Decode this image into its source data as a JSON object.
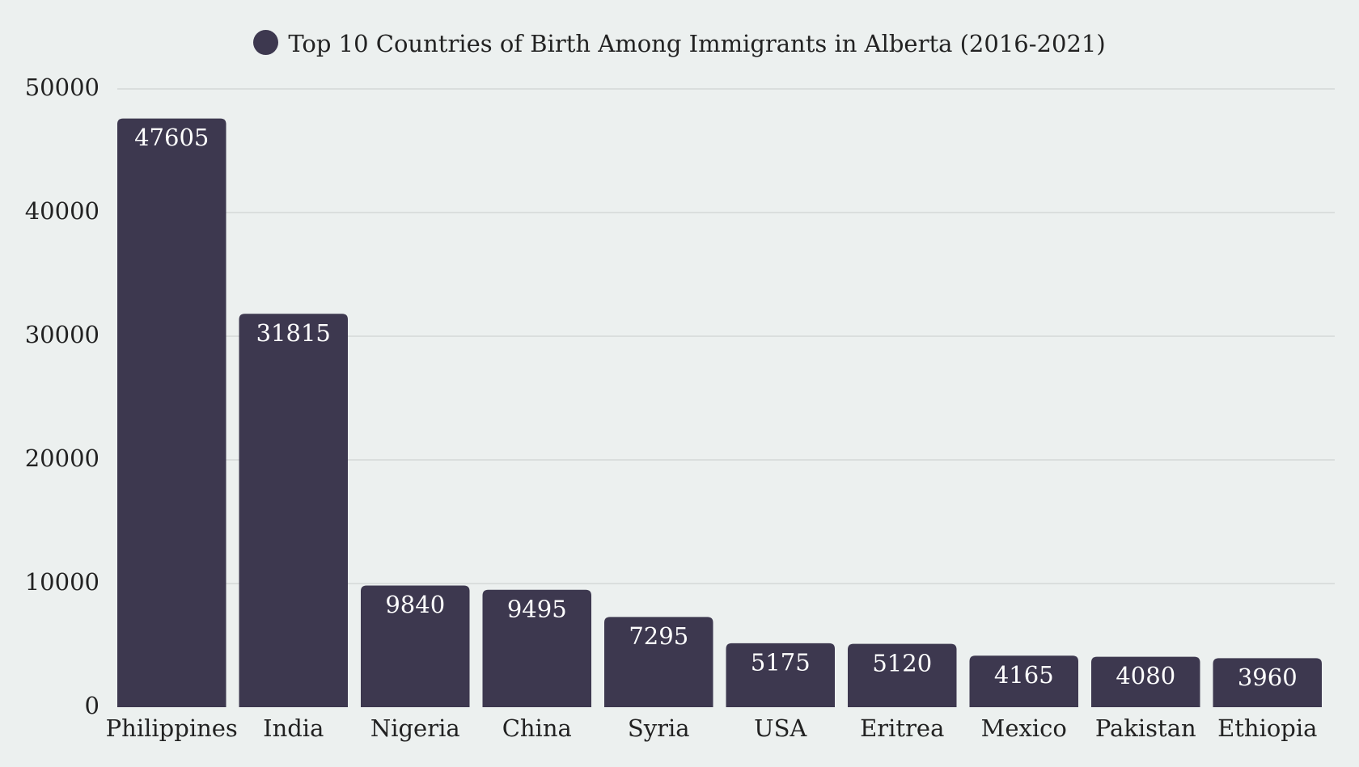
{
  "colors": {
    "background": "#ecf0ef",
    "bar": "#3d384f",
    "grid": "#d3d8d7",
    "text": "#222222",
    "bar_label": "#ffffff"
  },
  "chart_data": {
    "type": "bar",
    "title": "",
    "xlabel": "",
    "ylabel": "",
    "legend": {
      "placement": "top-center",
      "marker": "circle"
    },
    "categories": [
      "Philippines",
      "India",
      "Nigeria",
      "China",
      "Syria",
      "USA",
      "Eritrea",
      "Mexico",
      "Pakistan",
      "Ethiopia"
    ],
    "series": [
      {
        "name": "Top 10 Countries of Birth Among Immigrants in Alberta (2016-2021)",
        "values": [
          47605,
          31815,
          9840,
          9495,
          7295,
          5175,
          5120,
          4165,
          4080,
          3960
        ]
      }
    ],
    "ylim": [
      0,
      50000
    ],
    "yticks": [
      "0",
      "10000",
      "20000",
      "30000",
      "40000",
      "50000"
    ],
    "grid": true,
    "data_labels": true
  }
}
